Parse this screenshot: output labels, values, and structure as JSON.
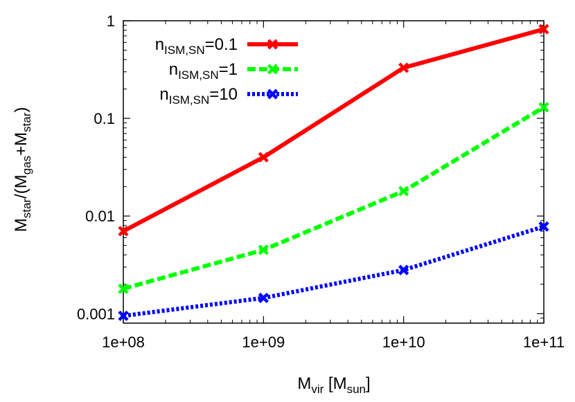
{
  "chart_data": {
    "type": "line",
    "x_scale": "log",
    "y_scale": "log",
    "xlim": [
      100000000.0,
      100000000000.0
    ],
    "ylim": [
      0.0008,
      1
    ],
    "x_ticks": [
      "1e+08",
      "1e+09",
      "1e+10",
      "1e+11"
    ],
    "y_ticks": [
      "0.001",
      "0.01",
      "0.1",
      "1"
    ],
    "xlabel": {
      "main": "M",
      "sub": "vir",
      "suffix_open": " [M",
      "suffix_sub": "sun",
      "suffix_close": "]"
    },
    "ylabel": {
      "m1": "M",
      "s1": "star",
      "t1": "/(M",
      "s2": "gas",
      "t2": "+M",
      "s3": "star",
      "t3": ")"
    },
    "legend_position": "top-right",
    "grid": false,
    "x": [
      100000000.0,
      1000000000.0,
      10000000000.0,
      100000000000.0
    ],
    "series": [
      {
        "name_main": "n",
        "name_sub": "ISM,SN",
        "name_value": "=0.1",
        "color": "#ff0000",
        "dash": "solid",
        "values": [
          0.007,
          0.04,
          0.33,
          0.82
        ]
      },
      {
        "name_main": "n",
        "name_sub": "ISM,SN",
        "name_value": "=1",
        "color": "#00ff00",
        "dash": "dashed",
        "values": [
          0.0018,
          0.0045,
          0.018,
          0.13
        ]
      },
      {
        "name_main": "n",
        "name_sub": "ISM,SN",
        "name_value": "=10",
        "color": "#0000ff",
        "dash": "dotted",
        "values": [
          0.00095,
          0.00145,
          0.0028,
          0.0078
        ]
      }
    ]
  }
}
